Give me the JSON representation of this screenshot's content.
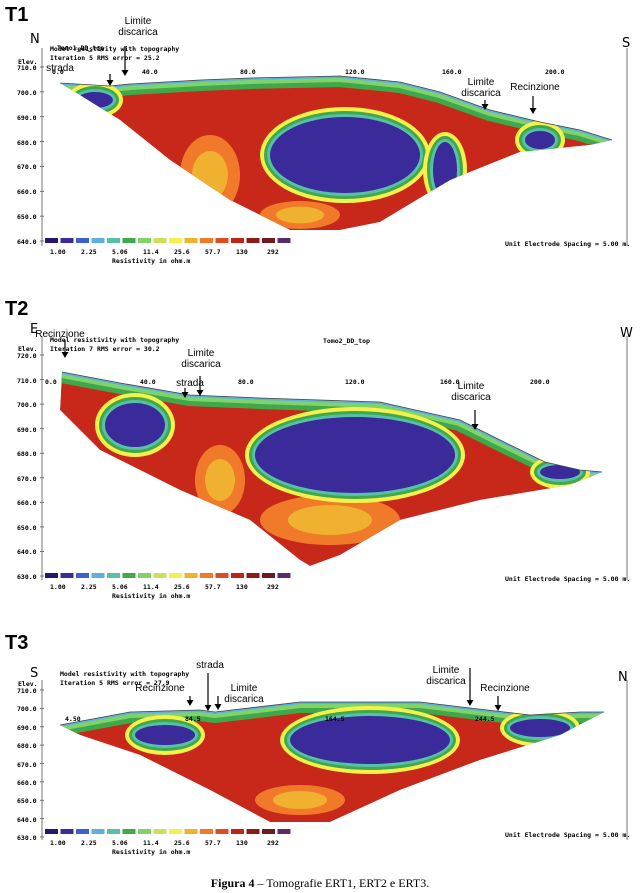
{
  "panels": [
    {
      "label": "T1",
      "left_direction": "N",
      "right_direction": "S",
      "section_title": "Tomo1_DD_top",
      "model_title": "Model resistivity with topography",
      "iteration": "Iteration 5 RMS error = 25.2",
      "elev_label": "Elev.",
      "elevations": [
        "710.0",
        "700.0",
        "690.0",
        "680.0",
        "670.0",
        "660.0",
        "650.0",
        "640.0"
      ],
      "distances": [
        "0.0",
        "40.0",
        "80.0",
        "120.0",
        "160.0",
        "200.0"
      ],
      "annotations": [
        "strada",
        "Limite discarica",
        "Limite discarica",
        "Recinzione"
      ],
      "legend_values": [
        "1.00",
        "2.25",
        "5.06",
        "11.4",
        "25.6",
        "57.7",
        "130",
        "292"
      ],
      "legend_title": "Resistivity in ohm.m",
      "spacing": "Unit Electrode Spacing = 5.00 m."
    },
    {
      "label": "T2",
      "left_direction": "E",
      "right_direction": "W",
      "section_title": "Tomo2_DD_top",
      "model_title": "Model resistivity with topography",
      "iteration": "Iteration 7 RMS error = 30.2",
      "elev_label": "Elev.",
      "elevations": [
        "720.0",
        "710.0",
        "700.0",
        "690.0",
        "680.0",
        "670.0",
        "660.0",
        "650.0",
        "640.0",
        "630.0"
      ],
      "distances": [
        "0.0",
        "40.0",
        "80.0",
        "120.0",
        "160.0",
        "200.0"
      ],
      "annotations": [
        "Recinzione",
        "strada",
        "Limite discarica",
        "Limite discarica"
      ],
      "legend_values": [
        "1.00",
        "2.25",
        "5.06",
        "11.4",
        "25.6",
        "57.7",
        "130",
        "292"
      ],
      "legend_title": "Resistivity in ohm.m",
      "spacing": "Unit Electrode Spacing = 5.00 m."
    },
    {
      "label": "T3",
      "left_direction": "S",
      "right_direction": "N",
      "model_title": "Model resistivity with topography",
      "iteration": "Iteration 5 RMS error = 27.9",
      "elev_label": "Elev.",
      "elevations": [
        "710.0",
        "700.0",
        "690.0",
        "680.0",
        "670.0",
        "660.0",
        "650.0",
        "640.0",
        "630.0"
      ],
      "distances": [
        "4.50",
        "84.5",
        "164.5",
        "244.5"
      ],
      "annotations": [
        "Recinzione",
        "strada",
        "Limite discarica",
        "Limite discarica",
        "Recinzione"
      ],
      "legend_values": [
        "1.00",
        "2.25",
        "5.06",
        "11.4",
        "25.6",
        "57.7",
        "130",
        "292"
      ],
      "legend_title": "Resistivity in ohm.m",
      "spacing": "Unit Electrode Spacing = 5.00 m."
    }
  ],
  "caption": {
    "label": "Figura 4",
    "text": "– Tomografie ERT1, ERT2 e ERT3."
  }
}
